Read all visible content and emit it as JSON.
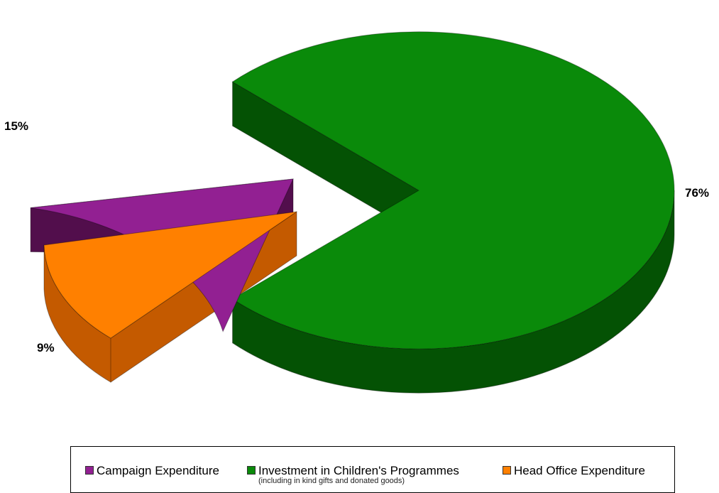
{
  "chart_data": {
    "type": "pie",
    "style": "3d-exploded",
    "slices": [
      {
        "name": "Investment in Children's Programmes",
        "note": "(including in kind gifts and donated goods)",
        "value": 76,
        "label": "76%",
        "color": "#0a8a0a",
        "side_color": "#045204"
      },
      {
        "name": "Campaign Expenditure",
        "value": 15,
        "label": "15%",
        "color": "#922092",
        "side_color": "#520e4c"
      },
      {
        "name": "Head Office Expenditure",
        "value": 9,
        "label": "9%",
        "color": "#ff8000",
        "side_color": "#c45a00"
      }
    ],
    "legend_position": "bottom"
  }
}
